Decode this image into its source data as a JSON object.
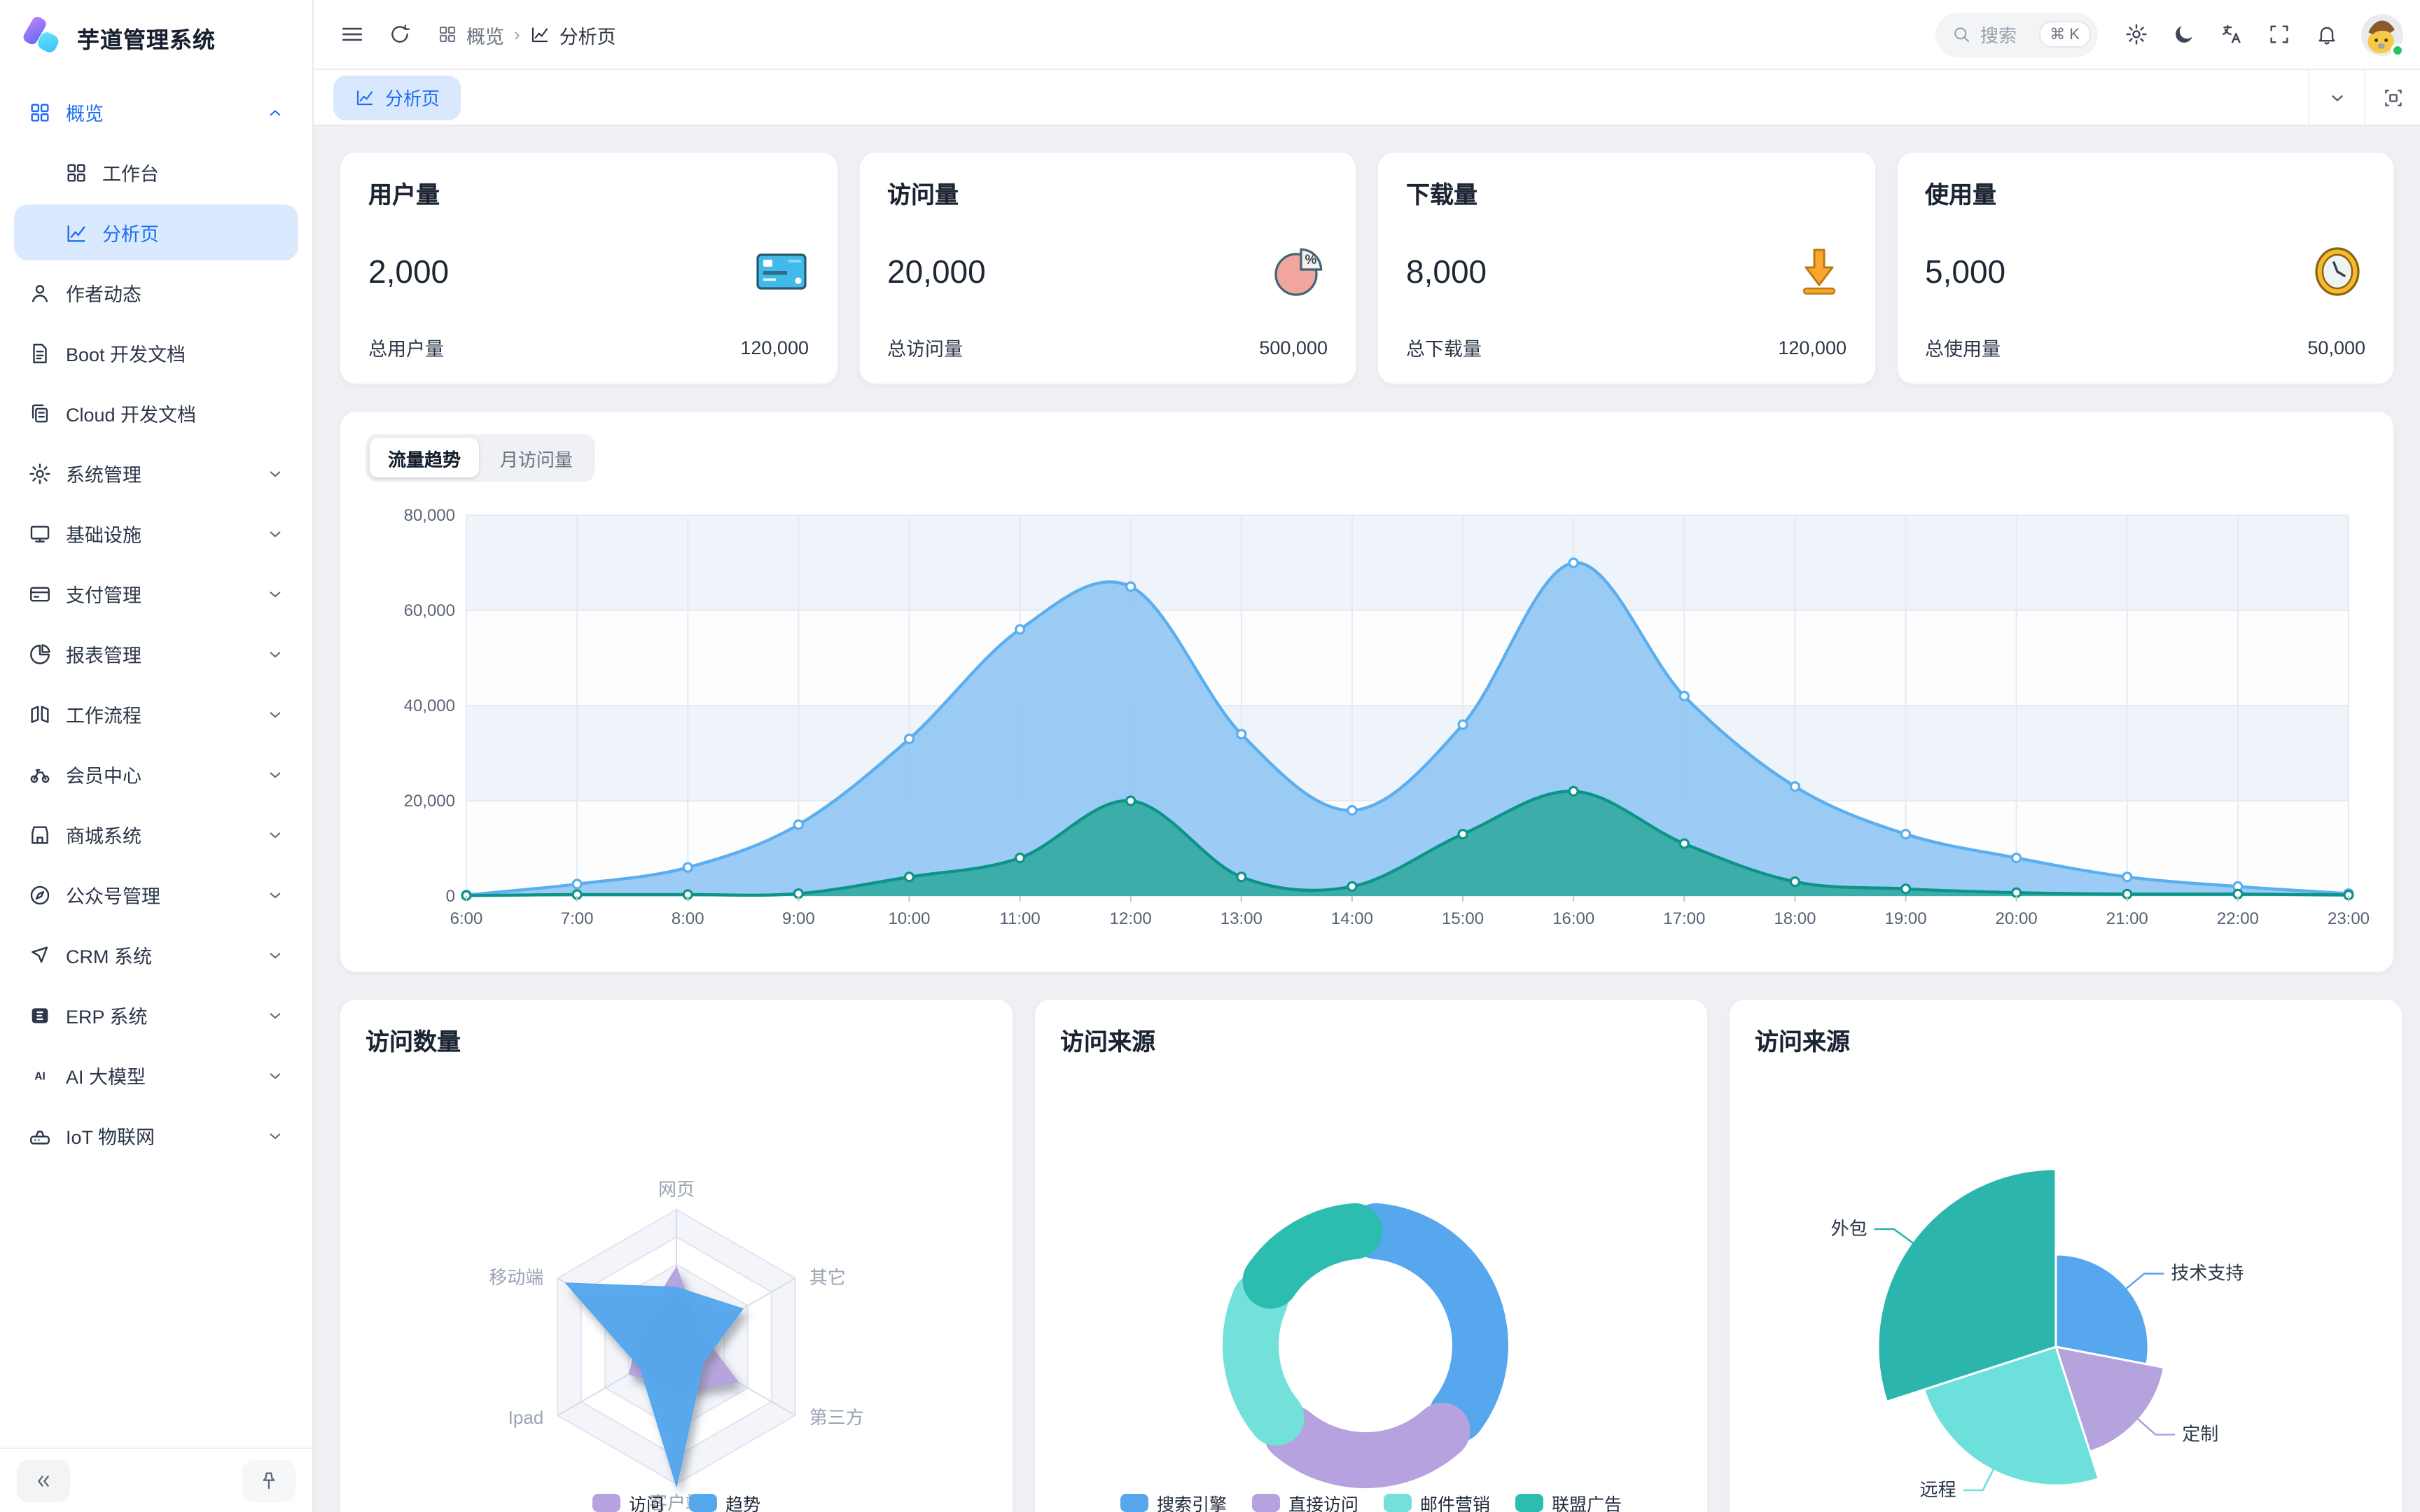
{
  "app": {
    "title": "芋道管理系统"
  },
  "sidebar": {
    "items": [
      {
        "icon": "grid",
        "label": "概览",
        "state": "expanded",
        "children": [
          {
            "icon": "grid",
            "label": "工作台"
          },
          {
            "icon": "chart",
            "label": "分析页",
            "state": "active"
          }
        ]
      },
      {
        "icon": "user",
        "label": "作者动态"
      },
      {
        "icon": "doc",
        "label": "Boot 开发文档"
      },
      {
        "icon": "docs",
        "label": "Cloud 开发文档"
      },
      {
        "icon": "gear",
        "label": "系统管理",
        "collapsible": true
      },
      {
        "icon": "monitor",
        "label": "基础设施",
        "collapsible": true
      },
      {
        "icon": "card",
        "label": "支付管理",
        "collapsible": true
      },
      {
        "icon": "pie",
        "label": "报表管理",
        "collapsible": true
      },
      {
        "icon": "flow",
        "label": "工作流程",
        "collapsible": true
      },
      {
        "icon": "bike",
        "label": "会员中心",
        "collapsible": true
      },
      {
        "icon": "shop",
        "label": "商城系统",
        "collapsible": true
      },
      {
        "icon": "compass",
        "label": "公众号管理",
        "collapsible": true
      },
      {
        "icon": "crm",
        "label": "CRM 系统",
        "collapsible": true
      },
      {
        "icon": "erp",
        "label": "ERP 系统",
        "collapsible": true
      },
      {
        "icon": "ai",
        "label": "AI 大模型",
        "collapsible": true
      },
      {
        "icon": "iot",
        "label": "IoT 物联网",
        "collapsible": true
      }
    ]
  },
  "header": {
    "breadcrumbs": [
      {
        "icon": "grid",
        "label": "概览"
      },
      {
        "icon": "chart",
        "label": "分析页"
      }
    ],
    "search": {
      "placeholder": "搜索",
      "shortcut": "⌘ K"
    },
    "icons": [
      "settings",
      "moon",
      "translate",
      "fullscreen",
      "bell",
      "avatar"
    ]
  },
  "tabbar": {
    "active_tab": "分析页"
  },
  "stats": [
    {
      "title": "用户量",
      "value": "2,000",
      "icon": "credit-card",
      "total_label": "总用户量",
      "total_value": "120,000"
    },
    {
      "title": "访问量",
      "value": "20,000",
      "icon": "pie-percent",
      "total_label": "总访问量",
      "total_value": "500,000"
    },
    {
      "title": "下载量",
      "value": "8,000",
      "icon": "download",
      "total_label": "总下载量",
      "total_value": "120,000"
    },
    {
      "title": "使用量",
      "value": "5,000",
      "icon": "clock",
      "total_label": "总使用量",
      "total_value": "50,000"
    }
  ],
  "trend_card": {
    "tabs": [
      "流量趋势",
      "月访问量"
    ],
    "active": 0
  },
  "bottom_cards": [
    {
      "title": "访问数量"
    },
    {
      "title": "访问来源"
    },
    {
      "title": "访问来源"
    }
  ],
  "chart_data": [
    {
      "type": "area",
      "title": "流量趋势",
      "grid": true,
      "legend_position": "none",
      "x": [
        "6:00",
        "7:00",
        "8:00",
        "9:00",
        "10:00",
        "11:00",
        "12:00",
        "13:00",
        "14:00",
        "15:00",
        "16:00",
        "17:00",
        "18:00",
        "19:00",
        "20:00",
        "21:00",
        "22:00",
        "23:00"
      ],
      "ylim": [
        0,
        80000
      ],
      "yticks": [
        0,
        20000,
        40000,
        60000,
        80000
      ],
      "series": [
        {
          "name": "访问量",
          "line_color": "#5baeef",
          "fill_color": "#8ec5f4",
          "values": [
            200,
            2500,
            6000,
            15000,
            33000,
            56000,
            65000,
            34000,
            18000,
            36000,
            70000,
            42000,
            23000,
            13000,
            8000,
            4000,
            2000,
            500
          ]
        },
        {
          "name": "趋势",
          "line_color": "#0d9488",
          "fill_color": "#2fa89d",
          "values": [
            100,
            300,
            300,
            500,
            4000,
            8000,
            20000,
            4000,
            2000,
            13000,
            22000,
            11000,
            3000,
            1500,
            700,
            400,
            400,
            200
          ]
        }
      ]
    },
    {
      "type": "radar",
      "title": "访问数量",
      "max": 100,
      "legend_position": "bottom",
      "indicators": [
        "网页",
        "其它",
        "第三方",
        "客户端",
        "Ipad",
        "移动端"
      ],
      "series": [
        {
          "name": "访问",
          "color": "#b6a2de",
          "values": [
            57,
            20,
            51,
            32,
            39,
            30
          ]
        },
        {
          "name": "趋势",
          "color": "#55a8ee",
          "values": [
            43,
            55,
            22,
            100,
            30,
            92
          ]
        }
      ]
    },
    {
      "type": "pie",
      "variant": "donut",
      "title": "访问来源",
      "legend_position": "bottom",
      "items": [
        {
          "name": "搜索引擎",
          "value": 1048,
          "color": "#56a7ee"
        },
        {
          "name": "直接访问",
          "value": 735,
          "color": "#b6a2de"
        },
        {
          "name": "邮件营销",
          "value": 580,
          "color": "#73e0da"
        },
        {
          "name": "联盟广告",
          "value": 484,
          "color": "#2cbcb0"
        }
      ]
    },
    {
      "type": "pie",
      "variant": "rose",
      "title": "访问来源",
      "legend_position": "none",
      "items": [
        {
          "name": "技术支持",
          "percent": 28,
          "radius": 0.52,
          "color": "#57a7ee"
        },
        {
          "name": "定制",
          "percent": 17,
          "radius": 0.62,
          "color": "#b4a3dd"
        },
        {
          "name": "远程",
          "percent": 25,
          "radius": 0.78,
          "color": "#6ee0dc"
        },
        {
          "name": "外包",
          "percent": 30,
          "radius": 1.0,
          "color": "#2cb5ac"
        }
      ]
    }
  ],
  "colors": {
    "primary": "#1b6ef3",
    "sidebar_active_bg": "#dbe9fe",
    "content_bg": "#eef0f4",
    "band_light": "#eff3fa",
    "grid_line": "#e5eaf3"
  }
}
